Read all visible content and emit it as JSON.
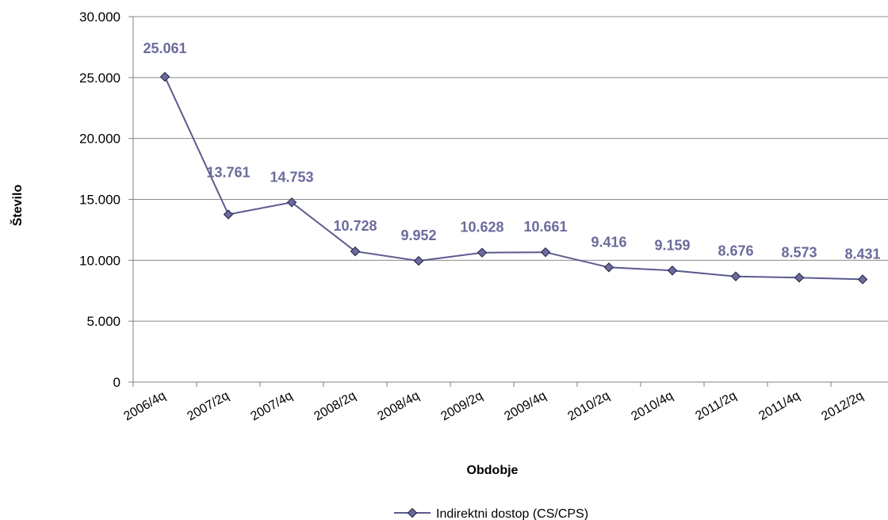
{
  "chart_data": {
    "type": "line",
    "categories": [
      "2006/4q",
      "2007/2q",
      "2007/4q",
      "2008/2q",
      "2008/4q",
      "2009/2q",
      "2009/4q",
      "2010/2q",
      "2010/4q",
      "2011/2q",
      "2011/4q",
      "2012/2q"
    ],
    "series": [
      {
        "name": "Indirektni dostop (CS/CPS)",
        "values": [
          25061,
          13761,
          14753,
          10728,
          9952,
          10628,
          10661,
          9416,
          9159,
          8676,
          8573,
          8431
        ],
        "labels": [
          "25.061",
          "13.761",
          "14.753",
          "10.728",
          "9.952",
          "10.628",
          "10.661",
          "9.416",
          "9.159",
          "8.676",
          "8.573",
          "8.431"
        ],
        "color": "#5b5b8f",
        "marker_fill": "#6b6ba0",
        "label_color": "#6b6b9c"
      }
    ],
    "xlabel": "Obdobje",
    "ylabel": "Število",
    "ylim": [
      0,
      30000
    ],
    "yticks": [
      0,
      5000,
      10000,
      15000,
      20000,
      25000,
      30000
    ],
    "ytick_labels": [
      "0",
      "5.000",
      "10.000",
      "15.000",
      "20.000",
      "25.000",
      "30.000"
    ],
    "grid": true,
    "legend_position": "bottom"
  }
}
